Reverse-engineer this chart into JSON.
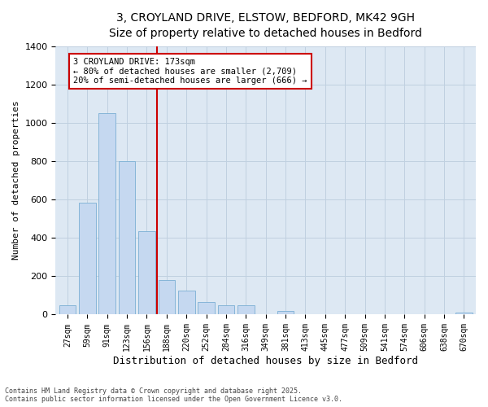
{
  "title_line1": "3, CROYLAND DRIVE, ELSTOW, BEDFORD, MK42 9GH",
  "title_line2": "Size of property relative to detached houses in Bedford",
  "xlabel": "Distribution of detached houses by size in Bedford",
  "ylabel": "Number of detached properties",
  "categories": [
    "27sqm",
    "59sqm",
    "91sqm",
    "123sqm",
    "156sqm",
    "188sqm",
    "220sqm",
    "252sqm",
    "284sqm",
    "316sqm",
    "349sqm",
    "381sqm",
    "413sqm",
    "445sqm",
    "477sqm",
    "509sqm",
    "541sqm",
    "574sqm",
    "606sqm",
    "638sqm",
    "670sqm"
  ],
  "values": [
    50,
    585,
    1050,
    800,
    435,
    180,
    125,
    65,
    50,
    50,
    0,
    20,
    0,
    0,
    0,
    0,
    0,
    0,
    0,
    0,
    10
  ],
  "bar_color": "#c5d8f0",
  "bar_edgecolor": "#7aafd4",
  "vline_x": 5,
  "vline_color": "#cc0000",
  "annotation_text": "3 CROYLAND DRIVE: 173sqm\n← 80% of detached houses are smaller (2,709)\n20% of semi-detached houses are larger (666) →",
  "annotation_box_color": "#cc0000",
  "ylim": [
    0,
    1400
  ],
  "yticks": [
    0,
    200,
    400,
    600,
    800,
    1000,
    1200,
    1400
  ],
  "grid_color": "#c0d0e0",
  "bg_color": "#dde8f3",
  "footnote": "Contains HM Land Registry data © Crown copyright and database right 2025.\nContains public sector information licensed under the Open Government Licence v3.0.",
  "title_fontsize": 10,
  "subtitle_fontsize": 9,
  "xlabel_fontsize": 9,
  "ylabel_fontsize": 8,
  "annot_fontsize": 7.5
}
